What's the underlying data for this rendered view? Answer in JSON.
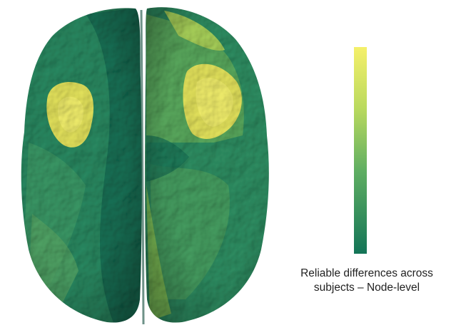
{
  "colors": {
    "background": "#ffffff",
    "base_green": "#2a8a62",
    "dark_green": "#177055",
    "mid_green": "#4aa160",
    "light_green": "#8cc755",
    "yellow": "#e6e55d",
    "bright_yellow": "#f2ef6c",
    "colorbar_top": "#f5f06a",
    "colorbar_bottom": "#137457"
  },
  "colorbar": {
    "orientation": "vertical",
    "label_line1": "Reliable differences across",
    "label_line2": "subjects – Node-level"
  },
  "figure": {
    "subject": "brain-surface-top-view",
    "hemispheres": [
      "left",
      "right"
    ]
  }
}
